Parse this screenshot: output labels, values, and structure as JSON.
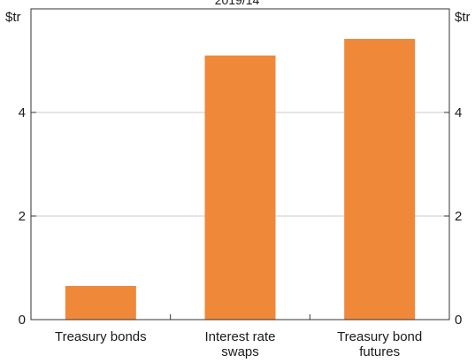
{
  "chart_data": {
    "type": "bar",
    "title": "2019/14",
    "categories": [
      {
        "line1": "Treasury bonds",
        "line2": ""
      },
      {
        "line1": "Interest rate",
        "line2": "swaps"
      },
      {
        "line1": "Treasury bond",
        "line2": "futures"
      }
    ],
    "values": [
      0.65,
      5.1,
      5.42
    ],
    "units": {
      "left": "$tr",
      "right": "$tr"
    },
    "yticks": [
      "0",
      "2",
      "4"
    ],
    "ytick_values": [
      0,
      2,
      4
    ],
    "ylim": [
      0,
      6
    ],
    "grid": true,
    "bar_color": "#f0883a",
    "grid_color": "#c8c8c8",
    "axis_color": "#333333"
  }
}
